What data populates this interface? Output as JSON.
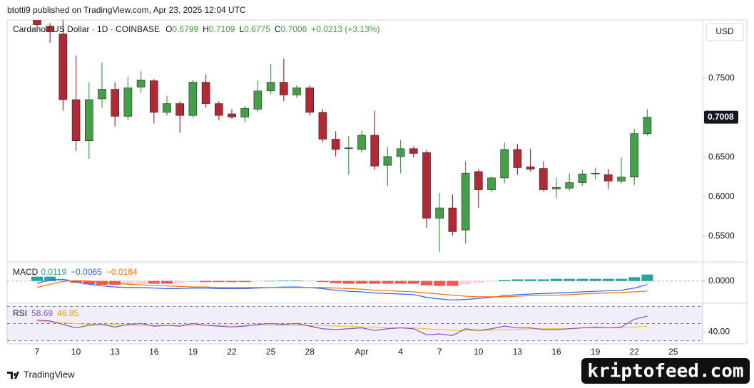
{
  "header": {
    "published": "btotti9 published on TradingView.com, Apr 23, 2025 12:04 UTC",
    "currency": "USD",
    "brand": "TradingView",
    "watermark": "kriptofeed.com"
  },
  "chart_data": [
    {
      "type": "candlestick",
      "title": "Cardano / US Dollar · 1D · COINBASE",
      "ohlc_labels": [
        "O",
        "H",
        "L",
        "C"
      ],
      "change_label": "+0.0213 (+3.13%)",
      "categories": [
        "7",
        null,
        null,
        "10",
        null,
        null,
        "13",
        null,
        null,
        "16",
        null,
        null,
        "19",
        null,
        null,
        "22",
        null,
        null,
        "25",
        null,
        null,
        "28",
        null,
        null,
        null,
        "Apr",
        null,
        null,
        "4",
        null,
        null,
        "7",
        null,
        null,
        "10",
        null,
        null,
        "13",
        null,
        null,
        "16",
        null,
        null,
        "19",
        null,
        null,
        "22",
        null,
        null,
        "25"
      ],
      "open": [
        0.83,
        0.816,
        0.806,
        0.723,
        0.671,
        0.724,
        0.736,
        0.702,
        0.739,
        0.747,
        0.707,
        0.718,
        0.703,
        0.745,
        0.718,
        0.705,
        0.701,
        0.711,
        0.734,
        0.745,
        0.729,
        0.738,
        0.707,
        0.673,
        0.661,
        0.66,
        0.678,
        0.64,
        0.651,
        0.661,
        0.656,
        0.573,
        0.586,
        0.558,
        0.632,
        0.609,
        0.624,
        0.66,
        0.638,
        0.636,
        0.61,
        0.611,
        0.618,
        0.629,
        0.628,
        0.62,
        0.625,
        0.6799,
        null,
        null
      ],
      "high": [
        0.84,
        0.82,
        0.83,
        0.779,
        0.745,
        0.77,
        0.745,
        0.752,
        0.759,
        0.749,
        0.728,
        0.721,
        0.748,
        0.755,
        0.721,
        0.711,
        0.715,
        0.747,
        0.768,
        0.775,
        0.741,
        0.741,
        0.711,
        0.683,
        0.677,
        0.684,
        0.709,
        0.663,
        0.672,
        0.664,
        0.659,
        0.605,
        0.603,
        0.645,
        0.635,
        0.626,
        0.669,
        0.667,
        0.661,
        0.645,
        0.624,
        0.63,
        0.634,
        0.637,
        0.635,
        0.65,
        0.686,
        0.7109,
        null,
        null
      ],
      "low": [
        0.81,
        0.795,
        0.709,
        0.658,
        0.648,
        0.713,
        0.689,
        0.697,
        0.732,
        0.693,
        0.703,
        0.681,
        0.7,
        0.713,
        0.697,
        0.699,
        0.694,
        0.707,
        0.73,
        0.721,
        0.725,
        0.703,
        0.669,
        0.651,
        0.628,
        0.656,
        0.634,
        0.614,
        0.63,
        0.65,
        0.561,
        0.53,
        0.551,
        0.541,
        0.586,
        0.606,
        0.617,
        0.628,
        0.632,
        0.607,
        0.598,
        0.608,
        0.614,
        0.622,
        0.61,
        0.617,
        0.615,
        0.6775,
        null,
        null
      ],
      "close": [
        0.818,
        0.809,
        0.723,
        0.671,
        0.723,
        0.736,
        0.702,
        0.738,
        0.748,
        0.707,
        0.718,
        0.703,
        0.745,
        0.718,
        0.703,
        0.701,
        0.712,
        0.734,
        0.745,
        0.729,
        0.738,
        0.707,
        0.673,
        0.66,
        0.662,
        0.678,
        0.639,
        0.651,
        0.661,
        0.655,
        0.573,
        0.586,
        0.556,
        0.63,
        0.609,
        0.624,
        0.66,
        0.637,
        0.635,
        0.609,
        0.612,
        0.618,
        0.629,
        0.63,
        0.62,
        0.625,
        0.68,
        0.7008,
        null,
        null
      ],
      "up_color": "#43a047",
      "down_color": "#b22833",
      "ylim": [
        0.5176,
        0.8239
      ],
      "yticks": [
        {
          "value": 0.75,
          "label": "0.7500"
        },
        {
          "value": 0.65,
          "label": "0.6500"
        },
        {
          "value": 0.6,
          "label": "0.6000"
        },
        {
          "value": 0.55,
          "label": "0.5500"
        }
      ]
    },
    {
      "type": "macd",
      "name": "MACD",
      "legend_labels": [
        "0.0119",
        "−0.0065",
        "−0.0184"
      ],
      "histogram": {
        "values": [
          0.008,
          0.008,
          0.004,
          -0.003,
          -0.006,
          -0.007,
          -0.007,
          -0.006,
          -0.005,
          -0.005,
          -0.005,
          -0.004,
          -0.002,
          -0.002,
          -0.002,
          -0.002,
          -0.002,
          -0.001,
          0.0,
          0.001,
          0.001,
          0.0,
          -0.002,
          -0.004,
          -0.005,
          -0.005,
          -0.005,
          -0.005,
          -0.005,
          -0.005,
          -0.008,
          -0.009,
          -0.009,
          -0.006,
          -0.003,
          -0.001,
          0.002,
          0.003,
          0.003,
          0.003,
          0.004,
          0.004,
          0.004,
          0.004,
          0.004,
          0.004,
          0.007,
          0.0119
        ],
        "colors": [
          "#26a69a",
          "#b2dfdb",
          "#ff5252",
          "#ffcdd2"
        ]
      },
      "macd": {
        "color": "#2962ff",
        "values": [
          -0.004,
          0.002,
          0.003,
          -0.002,
          -0.006,
          -0.009,
          -0.011,
          -0.012,
          -0.012,
          -0.013,
          -0.014,
          -0.014,
          -0.013,
          -0.013,
          -0.014,
          -0.014,
          -0.014,
          -0.013,
          -0.012,
          -0.011,
          -0.011,
          -0.012,
          -0.014,
          -0.017,
          -0.019,
          -0.02,
          -0.022,
          -0.023,
          -0.024,
          -0.025,
          -0.03,
          -0.033,
          -0.035,
          -0.034,
          -0.032,
          -0.03,
          -0.027,
          -0.025,
          -0.024,
          -0.023,
          -0.022,
          -0.021,
          -0.02,
          -0.019,
          -0.018,
          -0.017,
          -0.013,
          -0.0065
        ]
      },
      "signal": {
        "color": "#ff6d00",
        "values": [
          -0.012,
          -0.006,
          -0.001,
          0.001,
          0.0,
          -0.002,
          -0.004,
          -0.006,
          -0.007,
          -0.008,
          -0.009,
          -0.01,
          -0.011,
          -0.011,
          -0.012,
          -0.012,
          -0.012,
          -0.012,
          -0.012,
          -0.012,
          -0.012,
          -0.012,
          -0.012,
          -0.013,
          -0.014,
          -0.015,
          -0.017,
          -0.018,
          -0.019,
          -0.02,
          -0.022,
          -0.024,
          -0.026,
          -0.028,
          -0.029,
          -0.029,
          -0.029,
          -0.028,
          -0.027,
          -0.026,
          -0.026,
          -0.025,
          -0.024,
          -0.023,
          -0.022,
          -0.021,
          -0.02,
          -0.0184
        ]
      },
      "ylim": [
        -0.041,
        0.035
      ],
      "yticks": [
        {
          "value": 0,
          "label": "0.0000"
        }
      ]
    },
    {
      "type": "rsi",
      "name": "RSI",
      "rsi": {
        "color": "#7e57c2",
        "values": [
          54,
          53,
          49,
          45,
          48,
          49,
          46,
          49,
          50,
          47,
          48,
          47,
          50,
          48,
          47,
          46,
          47,
          49,
          50,
          49,
          50,
          47,
          44,
          43,
          44,
          45,
          42,
          44,
          45,
          44,
          37,
          38,
          36,
          44,
          42,
          44,
          47,
          45,
          45,
          43,
          43,
          44,
          45,
          46,
          45,
          46,
          55,
          58.69
        ]
      },
      "ma": {
        "color": "#f5c242",
        "values": [
          53,
          52,
          51,
          50,
          49,
          49,
          49,
          48,
          48,
          48,
          48,
          48,
          48,
          48,
          48,
          48,
          48,
          48,
          48,
          48,
          48,
          48,
          48,
          47,
          47,
          46,
          46,
          45,
          45,
          45,
          44,
          43,
          42,
          42,
          42,
          42,
          43,
          43,
          44,
          44,
          44,
          44,
          45,
          45,
          45,
          45,
          46,
          46.85
        ]
      },
      "bands": [
        70,
        50,
        30
      ],
      "ylim": [
        26.4,
        73.6
      ],
      "yticks": [
        {
          "value": 40,
          "label": "40.00"
        }
      ]
    }
  ]
}
